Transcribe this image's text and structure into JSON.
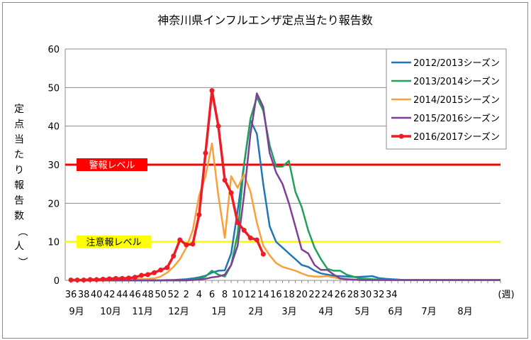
{
  "chart_data": {
    "type": "line",
    "title": "神奈川県インフルエンザ定点当たり報告数",
    "ylabel": "定点当たり報告数（人）",
    "xlabel_unit": "(週)",
    "ylim": [
      0,
      60
    ],
    "yticks": [
      0,
      10,
      20,
      30,
      40,
      50,
      60
    ],
    "grid": "horizontal",
    "legend_position": "top-right",
    "week_ticks": [
      "36",
      "38",
      "40",
      "42",
      "44",
      "46",
      "48",
      "50",
      "52",
      "2",
      "4",
      "6",
      "8",
      "10",
      "12",
      "14",
      "16",
      "18",
      "20",
      "22",
      "24",
      "26",
      "28",
      "30",
      "32",
      "34"
    ],
    "months": [
      "9月",
      "10月",
      "11月",
      "12月",
      "1月",
      "2月",
      "3月",
      "4月",
      "5月",
      "6月",
      "7月",
      "8月"
    ],
    "reference_lines": [
      {
        "label": "警報レベル",
        "value": 30,
        "color": "#ff0000",
        "label_bg": "#ff0000",
        "label_color": "#ffffff"
      },
      {
        "label": "注意報レベル",
        "value": 10,
        "color": "#ffff00",
        "label_bg": "#ffff00",
        "label_color": "#000000"
      }
    ],
    "series": [
      {
        "name": "2012/2013シーズン",
        "color": "#1f77b4",
        "width": 2.5,
        "values": [
          0,
          0,
          0,
          0,
          0,
          0,
          0,
          0,
          0,
          0,
          0,
          0,
          0,
          0,
          0,
          0.1,
          0.1,
          0.2,
          0.3,
          0.5,
          0.8,
          1.2,
          2.0,
          2.5,
          2.6,
          7,
          18,
          30,
          41.5,
          38,
          25,
          14,
          10,
          8.5,
          7,
          5.5,
          4,
          3.5,
          2.5,
          1.8,
          1.5,
          1.2,
          1.1,
          1.0,
          0.9,
          0.9,
          1.0,
          1.1,
          0.6,
          0.4,
          0.3,
          0.2,
          0.1,
          0.1,
          0.1,
          0.1,
          0.1,
          0.1,
          0.1,
          0.1,
          0.1,
          0.1,
          0.1,
          0.1,
          0.1,
          0.1,
          0.1,
          0.1
        ]
      },
      {
        "name": "2013/2014シーズン",
        "color": "#22a05a",
        "width": 2.5,
        "values": [
          0,
          0,
          0,
          0,
          0,
          0,
          0,
          0,
          0,
          0,
          0,
          0,
          0,
          0,
          0,
          0,
          0,
          0,
          0,
          0.2,
          0.5,
          1.0,
          2.5,
          1.5,
          1.0,
          4,
          12,
          30,
          42,
          47.5,
          44,
          35,
          29.5,
          29.5,
          31,
          23,
          19,
          13,
          8.5,
          5.5,
          3,
          2.5,
          2.5,
          1.5,
          1,
          0.5,
          0.4,
          0.3,
          0.2,
          0.1,
          0.1,
          0.1,
          0.1,
          0.1,
          0.1,
          0.1,
          0.1,
          0.1,
          0.1,
          0.1,
          0.1,
          0.1,
          0.1,
          0.1,
          0.1,
          0.1,
          0.1,
          0.1
        ]
      },
      {
        "name": "2014/2015シーズン",
        "color": "#f7a03c",
        "width": 2.5,
        "values": [
          0,
          0,
          0,
          0,
          0,
          0,
          0,
          0.1,
          0.1,
          0.2,
          0.3,
          0.3,
          0.4,
          0.5,
          1.0,
          2.0,
          3.5,
          5.5,
          8.5,
          13,
          22,
          27,
          35.5,
          22,
          11,
          27,
          24,
          27.5,
          23,
          15,
          9,
          6.5,
          4.5,
          3.5,
          3,
          2.5,
          1.8,
          1.2,
          1.0,
          1.0,
          1.1,
          0.8,
          0.4,
          0.3,
          0.2,
          0.1,
          0.1,
          0.1,
          0.1,
          0.1,
          0.1,
          0.1,
          0.1,
          0.1,
          0.1,
          0.1,
          0.1,
          0.1,
          0.1,
          0.1,
          0.1,
          0.1,
          0.1,
          0.1,
          0.1,
          0.1,
          0.1,
          0.1
        ]
      },
      {
        "name": "2015/2016シーズン",
        "color": "#7f3f98",
        "width": 2.5,
        "values": [
          0,
          0,
          0,
          0,
          0,
          0,
          0,
          0,
          0,
          0,
          0,
          0,
          0,
          0,
          0,
          0,
          0,
          0,
          0,
          0.1,
          0.2,
          0.4,
          0.8,
          1.0,
          1.5,
          4,
          9,
          22,
          38,
          48.5,
          45,
          33,
          28,
          25,
          20,
          14,
          8,
          7,
          4,
          2.7,
          2.7,
          1.5,
          0.5,
          0.3,
          0.2,
          0.1,
          0.1,
          0.1,
          0.1,
          0.1,
          0.1,
          0.1,
          0.1,
          0.1,
          0.1,
          0.1,
          0.1,
          0.1,
          0.1,
          0.1,
          0.1,
          0.1,
          0.1,
          0.1,
          0.1,
          0.1,
          0.1,
          0.1
        ]
      },
      {
        "name": "2016/2017シーズン",
        "color": "#ee1c25",
        "width": 3.5,
        "markers": true,
        "values": [
          0.1,
          0.1,
          0.1,
          0.2,
          0.2,
          0.3,
          0.4,
          0.5,
          0.5,
          0.6,
          0.8,
          1.3,
          1.5,
          2.0,
          2.7,
          3.3,
          6.3,
          10.5,
          9.2,
          9.4,
          17,
          33,
          49.2,
          40,
          26,
          22.7,
          15,
          13,
          11,
          10.5,
          6.8
        ]
      }
    ]
  }
}
